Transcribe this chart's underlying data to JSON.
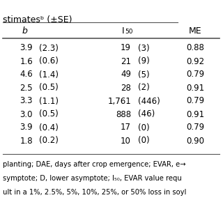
{
  "title": "stimatesᵇ (±SE)",
  "rows": [
    [
      "3.9",
      "(2.3)",
      "19",
      "(3)",
      "0.88"
    ],
    [
      "1.6",
      "(0.6)",
      "21",
      "(9)",
      "0.92"
    ],
    [
      "4.6",
      "(1.4)",
      "49",
      "(5)",
      "0.79"
    ],
    [
      "2.5",
      "(0.5)",
      "28",
      "(2)",
      "0.91"
    ],
    [
      "3.3",
      "(1.1)",
      "1,761",
      "(446)",
      "0.79"
    ],
    [
      "3.0",
      "(0.5)",
      "888",
      "(46)",
      "0.91"
    ],
    [
      "3.9",
      "(0.4)",
      "17",
      "(0)",
      "0.79"
    ],
    [
      "1.8",
      "(0.2)",
      "10",
      "(0)",
      "0.90"
    ]
  ],
  "footer_lines": [
    "planting; DAE, days after crop emergence; EVAR, e→",
    "symptote; D, lower asymptote; I₅₀, EVAR value requ",
    "ult in a 1%, 2.5%, 5%, 10%, 25%, or 50% loss in soyl"
  ],
  "bg_color": "#ffffff",
  "text_color": "#000000",
  "line_color": "#555555",
  "data_font_size": 8.5,
  "header_font_size": 9.0,
  "footer_font_size": 7.2
}
